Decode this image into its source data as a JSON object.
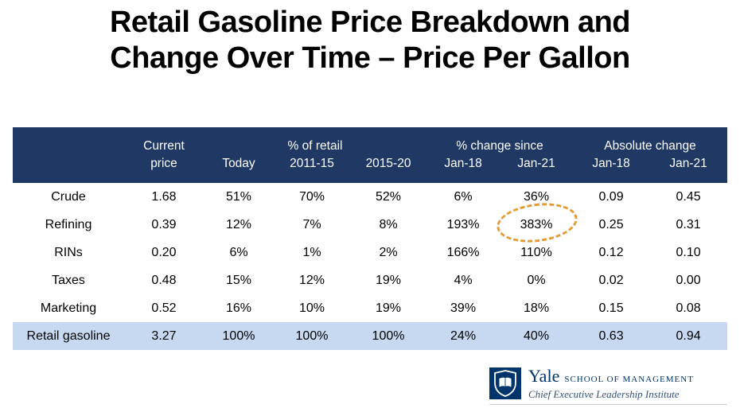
{
  "title": {
    "line1": "Retail Gasoline Price Breakdown and",
    "line2": "Change Over Time – Price Per Gallon"
  },
  "header_display": {
    "current_top": "Current",
    "current_bottom": "price",
    "pct_retail": "% of retail",
    "pct_change": "% change since",
    "abs_change": "Absolute change",
    "sub": [
      "Today",
      "2011-15",
      "2015-20",
      "Jan-18",
      "Jan-21",
      "Jan-18",
      "Jan-21"
    ]
  },
  "chart_data": {
    "type": "table",
    "title": "Retail Gasoline Price Breakdown and Change Over Time – Price Per Gallon",
    "column_groups": [
      {
        "label": "",
        "span": 1
      },
      {
        "label": "Current price",
        "span": 1
      },
      {
        "label": "% of retail",
        "span": 3
      },
      {
        "label": "% change since",
        "span": 2
      },
      {
        "label": "Absolute change",
        "span": 2
      }
    ],
    "columns": [
      "",
      "Current price",
      "% of retail Today",
      "% of retail 2011-15",
      "% of retail 2015-20",
      "% change since Jan-18",
      "% change since Jan-21",
      "Absolute change Jan-18",
      "Absolute change Jan-21"
    ],
    "rows": [
      [
        "Crude",
        "1.68",
        "51%",
        "70%",
        "52%",
        "6%",
        "36%",
        "0.09",
        "0.45"
      ],
      [
        "Refining",
        "0.39",
        "12%",
        "7%",
        "8%",
        "193%",
        "383%",
        "0.25",
        "0.31"
      ],
      [
        "RINs",
        "0.20",
        "6%",
        "1%",
        "2%",
        "166%",
        "110%",
        "0.12",
        "0.10"
      ],
      [
        "Taxes",
        "0.48",
        "15%",
        "12%",
        "19%",
        "4%",
        "0%",
        "0.02",
        "0.00"
      ],
      [
        "Marketing",
        "0.52",
        "16%",
        "10%",
        "19%",
        "39%",
        "18%",
        "0.15",
        "0.08"
      ],
      [
        "Retail gasoline",
        "3.27",
        "100%",
        "100%",
        "100%",
        "24%",
        "40%",
        "0.63",
        "0.94"
      ]
    ],
    "total_row": "Retail gasoline",
    "annotation": {
      "type": "dashed-ellipse",
      "highlighted_row": "Refining",
      "highlighted_column": "% change since Jan-21",
      "highlighted_value": "383%",
      "color": "#E39B35"
    }
  },
  "colors": {
    "header_bg": "#1F3864",
    "total_row_bg": "#C6D9F1",
    "annotation": "#E39B35",
    "yale_blue": "#00356B"
  },
  "footer": {
    "brand": "Yale",
    "school": "SCHOOL OF MANAGEMENT",
    "institute": "Chief Executive Leadership Institute",
    "logo_icon": "yale-shield-icon"
  }
}
